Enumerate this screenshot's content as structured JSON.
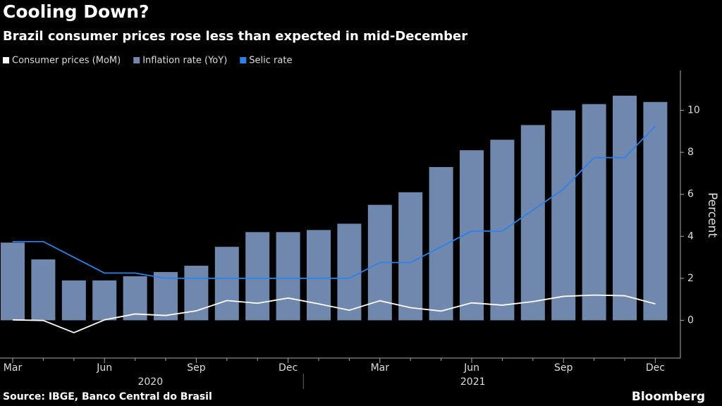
{
  "chart_data": {
    "type": "bar_line",
    "title": "Cooling Down?",
    "subtitle": "Brazil consumer prices rose less than expected in mid-December",
    "categories": [
      "Mar",
      null,
      null,
      "Jun",
      null,
      null,
      "Sep",
      null,
      null,
      "Dec",
      null,
      null,
      "Mar",
      null,
      null,
      "Jun",
      null,
      null,
      "Sep",
      null,
      null,
      "Dec"
    ],
    "x_groups": [
      "2020",
      "2021"
    ],
    "series": [
      {
        "name": "Consumer prices (MoM)",
        "kind": "line",
        "color": "#ffffff",
        "values": [
          0.02,
          -0.01,
          -0.59,
          0.02,
          0.3,
          0.23,
          0.45,
          0.94,
          0.81,
          1.06,
          0.78,
          0.48,
          0.93,
          0.6,
          0.44,
          0.83,
          0.72,
          0.89,
          1.14,
          1.2,
          1.17,
          0.78
        ]
      },
      {
        "name": "Inflation rate (YoY)",
        "kind": "bar",
        "color": "#7088ad",
        "values": [
          3.7,
          2.9,
          1.9,
          1.9,
          2.1,
          2.3,
          2.6,
          3.5,
          4.2,
          4.2,
          4.3,
          4.6,
          5.5,
          6.1,
          7.3,
          8.1,
          8.6,
          9.3,
          10.0,
          10.3,
          10.7,
          10.4
        ]
      },
      {
        "name": "Selic rate",
        "kind": "line",
        "color": "#2d82e8",
        "values": [
          3.75,
          3.75,
          3.0,
          2.25,
          2.25,
          2.0,
          2.0,
          2.0,
          2.0,
          2.0,
          2.0,
          2.0,
          2.75,
          2.75,
          3.5,
          4.25,
          4.25,
          5.25,
          6.25,
          7.75,
          7.75,
          9.25
        ]
      }
    ],
    "ylabel": "Percent",
    "ylim": [
      -1.8,
      11.9
    ],
    "yticks": [
      0,
      2,
      4,
      6,
      8,
      10
    ],
    "source": "Source: IBGE, Banco Central do Brasil",
    "brand": "Bloomberg"
  }
}
